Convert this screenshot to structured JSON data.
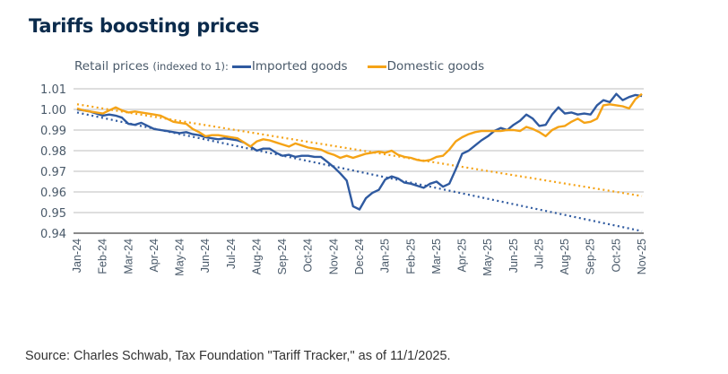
{
  "title": "Tariffs boosting prices",
  "source": "Source: Charles Schwab, Tax Foundation \"Tariff Tracker,\" as of 11/1/2025.",
  "chart_data": {
    "type": "line",
    "title": "Tariffs boosting prices",
    "ylabel": "Retail prices",
    "ylabel_note": "(indexed to 1):",
    "xlabel": "",
    "ylim": [
      0.94,
      1.01
    ],
    "yticks": [
      "1.01",
      "1.00",
      "0.99",
      "0.98",
      "0.97",
      "0.96",
      "0.95",
      "0.94"
    ],
    "grid": true,
    "legend_position": "top-left",
    "categories": [
      "Jan-24",
      "Feb-24",
      "Mar-24",
      "Apr-24",
      "May-24",
      "Jun-24",
      "Jul-24",
      "Aug-24",
      "Sep-24",
      "Oct-24",
      "Nov-24",
      "Dec-24",
      "Jan-25",
      "Feb-25",
      "Mar-25",
      "Apr-25",
      "May-25",
      "Jun-25",
      "Jul-25",
      "Aug-25",
      "Sep-25",
      "Oct-25",
      "Nov-25"
    ],
    "x": [
      0,
      0.25,
      0.5,
      0.75,
      1,
      1.25,
      1.5,
      1.75,
      2,
      2.25,
      2.5,
      2.75,
      3,
      3.25,
      3.5,
      3.75,
      4,
      4.25,
      4.5,
      4.75,
      5,
      5.25,
      5.5,
      5.75,
      6,
      6.25,
      6.5,
      6.75,
      7,
      7.25,
      7.5,
      7.75,
      8,
      8.25,
      8.5,
      8.75,
      9,
      9.25,
      9.5,
      9.75,
      10,
      10.25,
      10.5,
      10.75,
      11,
      11.25,
      11.5,
      11.75,
      12,
      12.25,
      12.5,
      12.75,
      13,
      13.25,
      13.5,
      13.75,
      14,
      14.25,
      14.5,
      14.75,
      15,
      15.25,
      15.5,
      15.75,
      16,
      16.25,
      16.5,
      16.75,
      17,
      17.25,
      17.5,
      17.75,
      18,
      18.25,
      18.5,
      18.75,
      19,
      19.25,
      19.5,
      19.75,
      20,
      20.25,
      20.5,
      20.75,
      21,
      21.25,
      21.5,
      21.75,
      22
    ],
    "series": [
      {
        "name": "Imported goods",
        "color": "#2f5aa0",
        "values": [
          1.0,
          0.9995,
          0.999,
          0.998,
          0.997,
          0.9975,
          0.997,
          0.996,
          0.993,
          0.9925,
          0.9935,
          0.992,
          0.9905,
          0.99,
          0.9895,
          0.989,
          0.9885,
          0.989,
          0.988,
          0.9875,
          0.9865,
          0.986,
          0.9855,
          0.986,
          0.9855,
          0.985,
          0.984,
          0.982,
          0.98,
          0.981,
          0.981,
          0.979,
          0.9775,
          0.978,
          0.977,
          0.9775,
          0.9775,
          0.977,
          0.977,
          0.9745,
          0.972,
          0.969,
          0.9655,
          0.953,
          0.9515,
          0.957,
          0.9595,
          0.961,
          0.966,
          0.9675,
          0.9665,
          0.9645,
          0.964,
          0.963,
          0.962,
          0.964,
          0.965,
          0.9625,
          0.964,
          0.971,
          0.9785,
          0.98,
          0.9825,
          0.985,
          0.987,
          0.9895,
          0.991,
          0.99,
          0.9925,
          0.9945,
          0.9975,
          0.9955,
          0.992,
          0.9925,
          0.9975,
          1.001,
          0.998,
          0.9985,
          0.9975,
          0.998,
          0.9975,
          1.002,
          1.0045,
          1.0035,
          1.0075,
          1.0045,
          1.006,
          1.007,
          1.0065
        ],
        "trend": {
          "start": 0.9985,
          "end": 0.941,
          "style": "dotted"
        }
      },
      {
        "name": "Domestic goods",
        "color": "#f5a316",
        "values": [
          1.0005,
          0.9995,
          0.999,
          0.9985,
          0.998,
          0.9995,
          1.001,
          0.9995,
          0.9985,
          0.999,
          0.9985,
          0.998,
          0.9975,
          0.997,
          0.9955,
          0.994,
          0.9935,
          0.993,
          0.9905,
          0.989,
          0.987,
          0.9875,
          0.9875,
          0.987,
          0.9865,
          0.986,
          0.984,
          0.982,
          0.9845,
          0.9855,
          0.985,
          0.984,
          0.983,
          0.982,
          0.9835,
          0.9825,
          0.9815,
          0.981,
          0.9805,
          0.979,
          0.978,
          0.9765,
          0.9775,
          0.9765,
          0.9775,
          0.9785,
          0.979,
          0.9795,
          0.979,
          0.98,
          0.978,
          0.977,
          0.9765,
          0.9755,
          0.975,
          0.9755,
          0.977,
          0.9775,
          0.9805,
          0.9845,
          0.9865,
          0.988,
          0.989,
          0.9895,
          0.9895,
          0.9895,
          0.9895,
          0.99,
          0.99,
          0.9895,
          0.9915,
          0.9905,
          0.989,
          0.987,
          0.99,
          0.9915,
          0.992,
          0.994,
          0.9955,
          0.9935,
          0.994,
          0.9955,
          1.002,
          1.0025,
          1.002,
          1.0015,
          1.0005,
          1.005,
          1.0075
        ],
        "trend": {
          "start": 1.0025,
          "end": 0.958,
          "style": "dotted"
        }
      }
    ]
  }
}
